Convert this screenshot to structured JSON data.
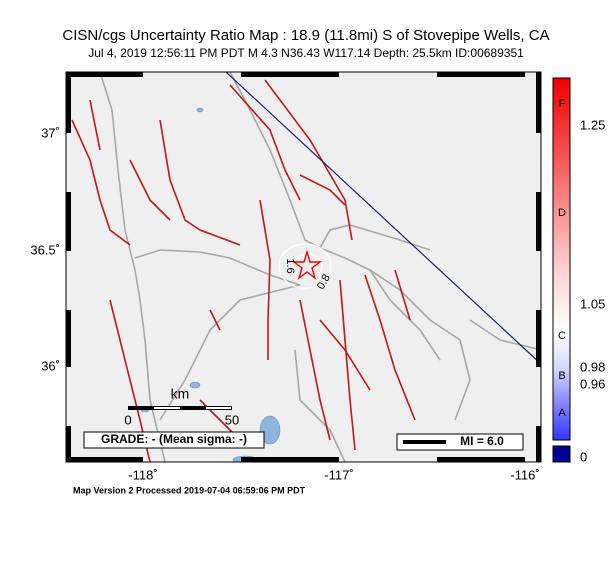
{
  "header": {
    "title": "CISN/cgs Uncertainty Ratio Map : 18.9 (11.8mi) S of Stovepipe Wells, CA",
    "subtitle": "Jul  4, 2019 12:56:11 PM PDT   M 4.3   N36.43 W117.14   Depth: 25.5km   ID:00689351"
  },
  "map": {
    "lat_labels": [
      "37˚",
      "36.5˚",
      "36˚"
    ],
    "lon_labels": [
      "-118˚",
      "-117˚",
      "-116˚"
    ],
    "contour_labels": [
      "1.6",
      "0.8"
    ],
    "scale": {
      "unit": "km",
      "labels": [
        "0",
        "50"
      ]
    },
    "grade": "GRADE: - (Mean sigma: -)",
    "legend": "MI = 6.0"
  },
  "colorbar": {
    "letters": [
      "F",
      "D",
      "C",
      "B",
      "A"
    ],
    "values": [
      "1.25",
      "1.05",
      "0.98",
      "0.96",
      "0"
    ]
  },
  "footer": "Map Version 2 Processed 2019-07-04 06:59:06 PM PDT"
}
